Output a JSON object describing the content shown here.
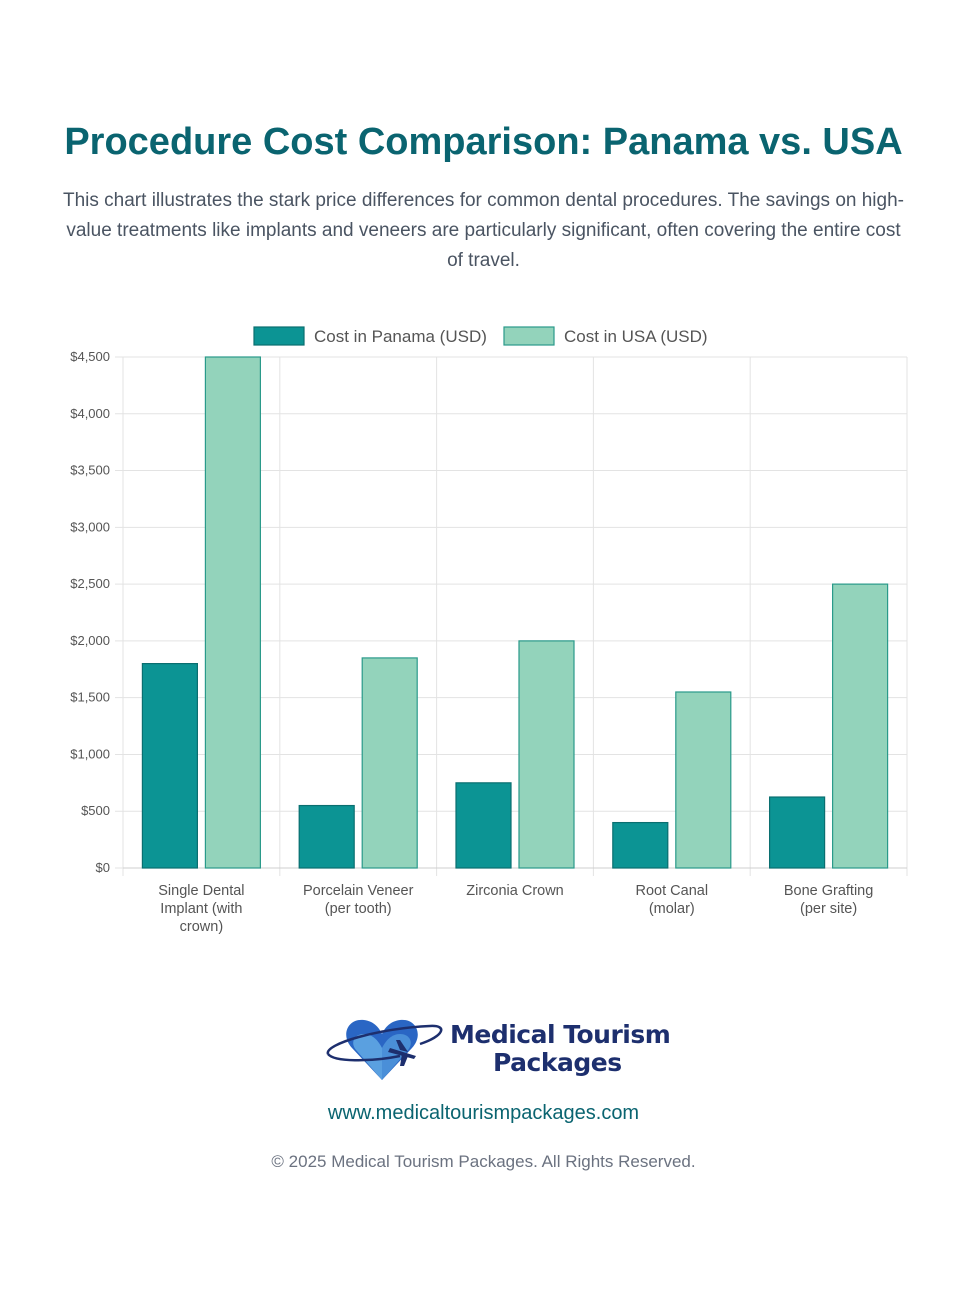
{
  "header": {
    "title": "Procedure Cost Comparison: Panama vs. USA",
    "description": "This chart illustrates the stark price differences for common dental procedures. The savings on high-value treatments like implants and veneers are particularly significant, often covering the entire cost of travel."
  },
  "chart_data": {
    "type": "bar",
    "title": "",
    "xlabel": "",
    "ylabel": "",
    "ylim": [
      0,
      4500
    ],
    "grid": true,
    "legend_position": "top-center",
    "categories": [
      [
        "Single Dental",
        "Implant (with",
        "crown)"
      ],
      [
        "Porcelain Veneer",
        "(per tooth)"
      ],
      [
        "Zirconia Crown"
      ],
      [
        "Root Canal",
        "(molar)"
      ],
      [
        "Bone Grafting",
        "(per site)"
      ]
    ],
    "y_ticks": [
      "$0",
      "$500",
      "$1,000",
      "$1,500",
      "$2,000",
      "$2,500",
      "$3,000",
      "$3,500",
      "$4,000",
      "$4,500"
    ],
    "series": [
      {
        "name": "Cost in Panama (USD)",
        "values": [
          1800,
          550,
          750,
          400,
          625
        ],
        "color": "#0c9494",
        "border": "#0a6f70"
      },
      {
        "name": "Cost in USA (USD)",
        "values": [
          4500,
          1850,
          2000,
          1550,
          2500
        ],
        "color": "#93d3bb",
        "border": "#2a9a8a"
      }
    ]
  },
  "footer": {
    "brand_line1": "Medical Tourism",
    "brand_line2": "Packages",
    "website": "www.medicaltourismpackages.com",
    "copyright": "© 2025 Medical Tourism Packages. All Rights Reserved."
  },
  "colors": {
    "accent": "#0a6470",
    "brand": "#1d2f6e",
    "heart": "#2a66c4"
  }
}
